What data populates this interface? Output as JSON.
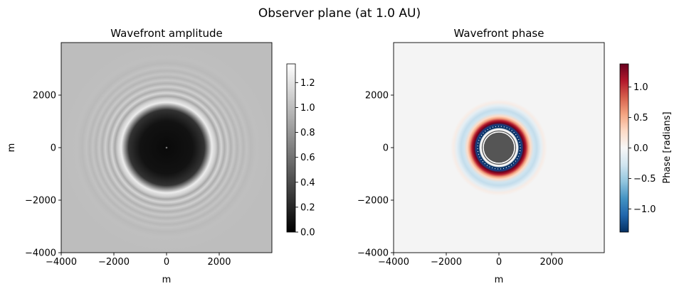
{
  "figure": {
    "suptitle": "Observer plane (at 1.0 AU)"
  },
  "chart_data": [
    {
      "type": "heatmap",
      "title": "Wavefront amplitude",
      "xlabel": "m",
      "ylabel": "m",
      "xlim": [
        -4000,
        4000
      ],
      "ylim": [
        -4000,
        4000
      ],
      "xticks": [
        -4000,
        -2000,
        0,
        2000
      ],
      "yticks": [
        -4000,
        -2000,
        0,
        2000
      ],
      "xtick_labels": [
        "−4000",
        "−2000",
        "0",
        "2000"
      ],
      "ytick_labels": [
        "−4000",
        "−2000",
        "0",
        "2000"
      ],
      "colormap": "gray",
      "background_value": 1.0,
      "disk_radius_m": 900,
      "peak_ring_value": 1.3,
      "colorbar": {
        "label": "",
        "range": [
          0,
          1.35
        ],
        "ticks": [
          0.0,
          0.2,
          0.4,
          0.6,
          0.8,
          1.0,
          1.2
        ],
        "tick_labels": [
          "0.0",
          "0.2",
          "0.4",
          "0.6",
          "0.8",
          "1.0",
          "1.2"
        ]
      }
    },
    {
      "type": "heatmap",
      "title": "Wavefront phase",
      "xlabel": "m",
      "ylabel": "",
      "xlim": [
        -4000,
        4000
      ],
      "ylim": [
        -4000,
        4000
      ],
      "xticks": [
        -4000,
        -2000,
        0,
        2000
      ],
      "yticks": [
        -4000,
        -2000,
        0,
        2000
      ],
      "xtick_labels": [
        "−4000",
        "−2000",
        "0",
        "2000"
      ],
      "ytick_labels": [
        "−4000",
        "−2000",
        "0",
        "2000"
      ],
      "colormap": "RdBu_r",
      "background_value": 0.0,
      "disk_radius_m": 650,
      "disk_color": "#555555",
      "colorbar": {
        "label": "Phase [radians]",
        "range": [
          -1.38,
          1.38
        ],
        "ticks": [
          -1.0,
          -0.5,
          0.0,
          0.5,
          1.0
        ],
        "tick_labels": [
          "−1.0",
          "−0.5",
          "0.0",
          "0.5",
          "1.0"
        ]
      }
    }
  ]
}
